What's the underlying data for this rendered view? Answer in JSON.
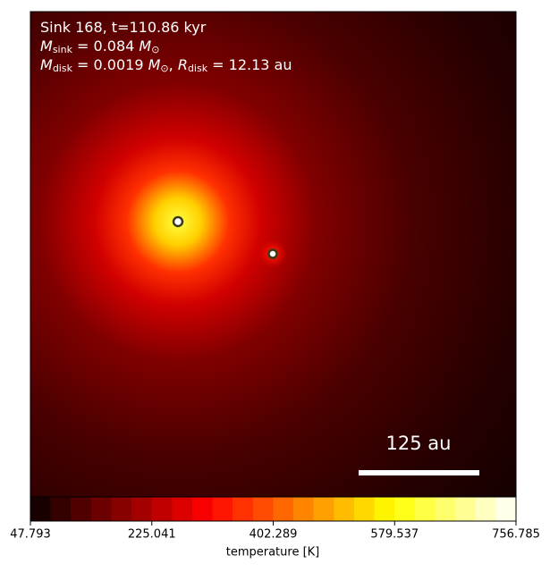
{
  "chart_data": {
    "type": "image",
    "annotation_lines": [
      [
        {
          "text": "Sink 168, t=110.86 kyr"
        }
      ],
      [
        {
          "text": "M",
          "italic": true
        },
        {
          "text": "sink",
          "sub": true
        },
        {
          "text": " = 0.084 "
        },
        {
          "text": "M",
          "italic": true
        },
        {
          "text": "⊙",
          "sub": true
        }
      ],
      [
        {
          "text": "M",
          "italic": true
        },
        {
          "text": "disk",
          "sub": true
        },
        {
          "text": " = 0.0019 "
        },
        {
          "text": "M",
          "italic": true
        },
        {
          "text": "⊙",
          "sub": true
        },
        {
          "text": ", "
        },
        {
          "text": "R",
          "italic": true
        },
        {
          "text": "disk",
          "sub": true
        },
        {
          "text": " = 12.13 au"
        }
      ]
    ],
    "scale_bar_label": "125 au",
    "colormap": "hot",
    "colorbar_label": "temperature [K]",
    "clim": [
      47.793,
      756.785
    ],
    "cticks": [
      47.793,
      225.041,
      402.289,
      579.537,
      756.785
    ]
  }
}
